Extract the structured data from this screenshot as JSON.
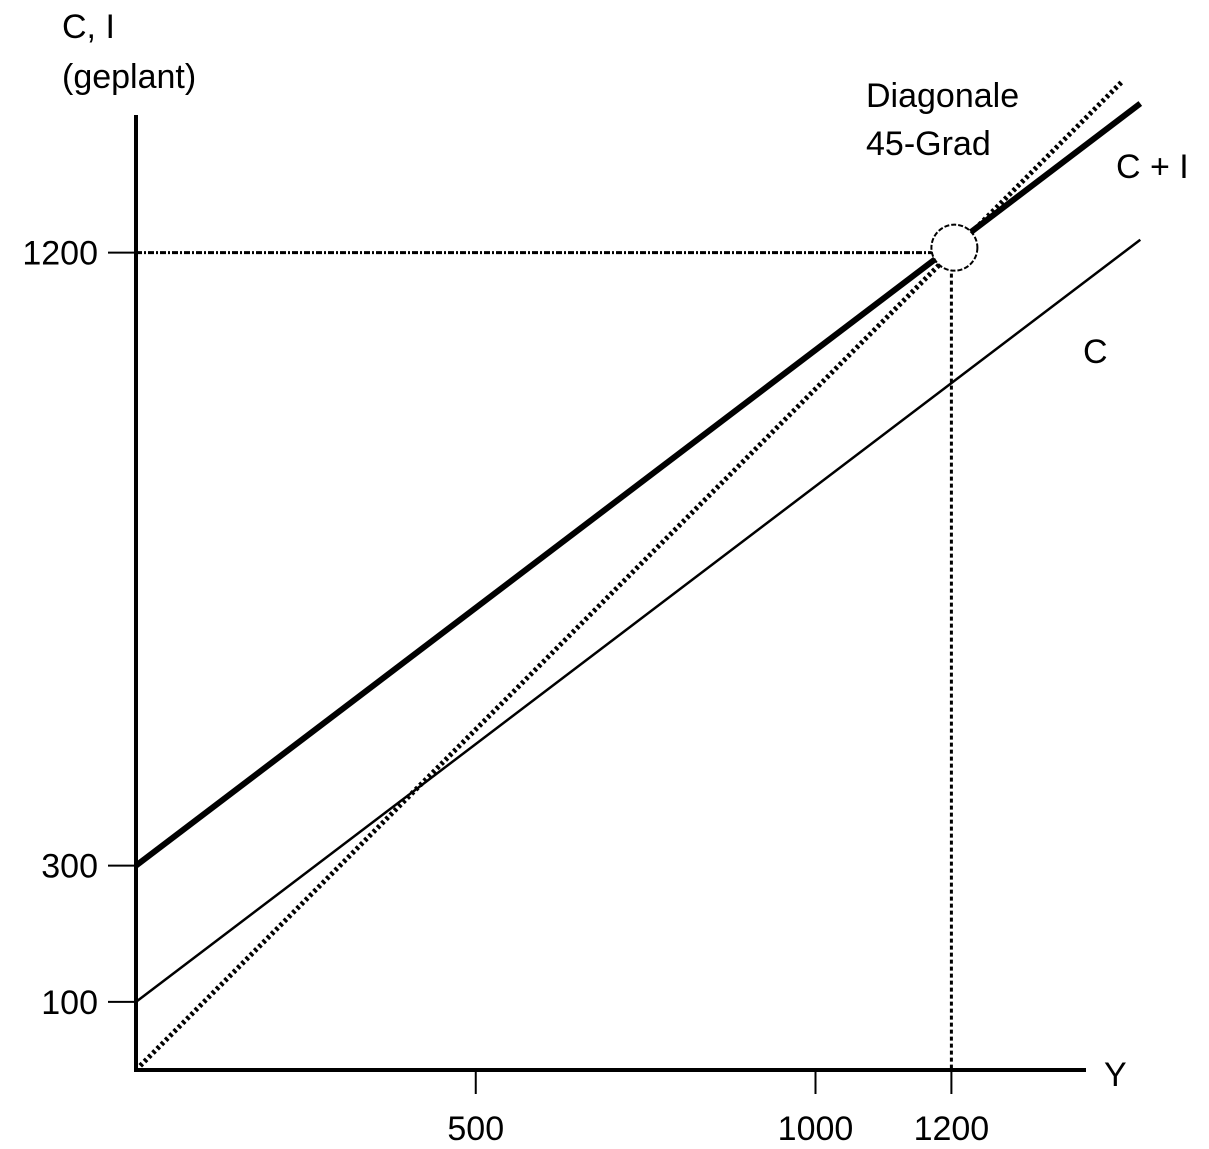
{
  "chart_data": {
    "type": "line",
    "ylabel_lines": [
      "C, I",
      "(geplant)"
    ],
    "xlabel": "Y",
    "xlim": [
      0,
      1400
    ],
    "ylim": [
      0,
      1220
    ],
    "x_ticks": [
      500,
      1000,
      1200
    ],
    "y_ticks": [
      100,
      300,
      1200
    ],
    "series": [
      {
        "name": "C + I",
        "style": "thick",
        "x": [
          0,
          1478
        ],
        "y": [
          300,
          1419
        ]
      },
      {
        "name": "C",
        "style": "thin",
        "x": [
          0,
          1478
        ],
        "y": [
          100,
          1219
        ]
      },
      {
        "name": "Diagonale 45-Grad",
        "label_lines": [
          "Diagonale",
          "45-Grad"
        ],
        "style": "dotted",
        "x": [
          0,
          1450
        ],
        "y": [
          0,
          1450
        ]
      }
    ],
    "equilibrium": {
      "x": 1200,
      "y": 1200
    }
  }
}
